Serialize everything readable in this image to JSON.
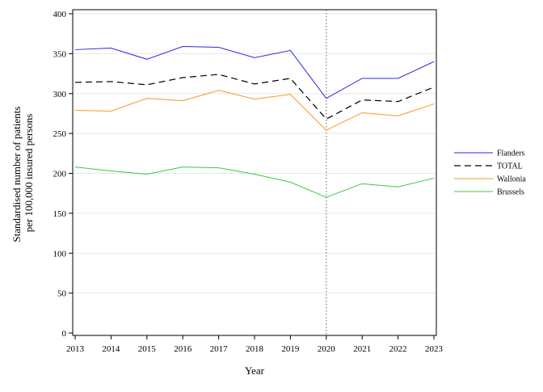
{
  "chart_data": {
    "type": "line",
    "title": "",
    "xlabel": "Year",
    "ylabel_lines": [
      "Standardised number of patients",
      "per 100,000 insured persons"
    ],
    "x": [
      2013,
      2014,
      2015,
      2016,
      2017,
      2018,
      2019,
      2020,
      2021,
      2022,
      2023
    ],
    "xlim": [
      2013,
      2023
    ],
    "ylim": [
      0,
      400
    ],
    "yticks": [
      0,
      50,
      100,
      150,
      200,
      250,
      300,
      350,
      400
    ],
    "grid": "horizontal-light",
    "reference_line": {
      "x": 2020,
      "style": "dotted",
      "color": "#8b6e6e"
    },
    "legend_position": "right",
    "series": [
      {
        "name": "Flanders",
        "color": "#2a2ae0",
        "dash": "solid",
        "values": [
          355,
          357,
          343,
          359,
          358,
          345,
          354,
          294,
          319,
          319,
          340
        ]
      },
      {
        "name": "TOTAL",
        "color": "#000000",
        "dash": "dashed",
        "values": [
          314,
          315,
          311,
          320,
          324,
          312,
          319,
          268,
          292,
          290,
          308
        ]
      },
      {
        "name": "Wallonia",
        "color": "#f59a20",
        "dash": "solid",
        "values": [
          279,
          278,
          294,
          291,
          304,
          293,
          299,
          254,
          276,
          272,
          287
        ]
      },
      {
        "name": "Brussels",
        "color": "#3cc83c",
        "dash": "solid",
        "values": [
          208,
          203,
          199,
          208,
          207,
          199,
          189,
          170,
          187,
          183,
          194
        ]
      }
    ]
  }
}
